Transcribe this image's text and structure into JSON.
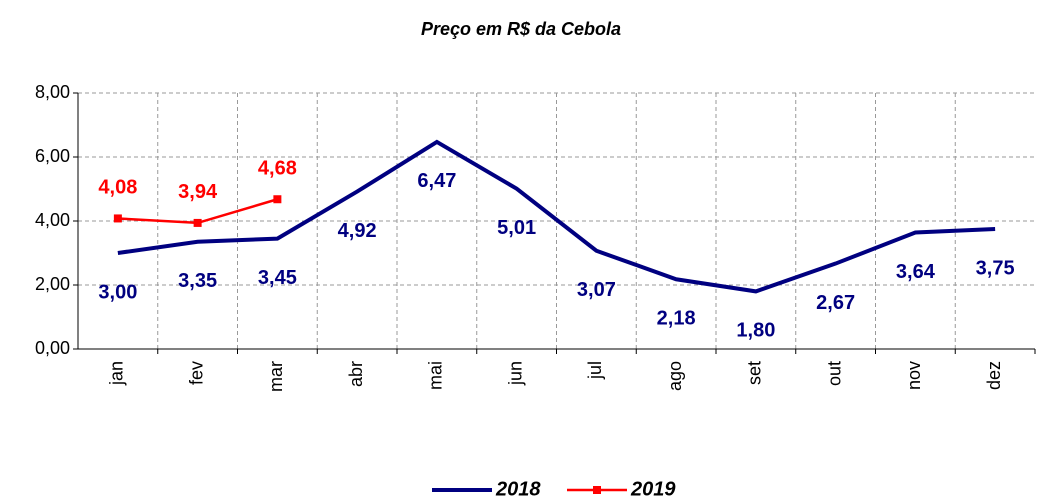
{
  "chart_data": {
    "type": "line",
    "title": "Preço em R$ da Cebola",
    "categories": [
      "jan",
      "fev",
      "mar",
      "abr",
      "mai",
      "jun",
      "jul",
      "ago",
      "set",
      "out",
      "nov",
      "dez"
    ],
    "series": [
      {
        "name": "2018",
        "color": "#000080",
        "values": [
          3.0,
          3.35,
          3.45,
          4.92,
          6.47,
          5.01,
          3.07,
          2.18,
          1.8,
          2.67,
          3.64,
          3.75
        ],
        "value_labels": [
          "3,00",
          "3,35",
          "3,45",
          "4,92",
          "6,47",
          "5,01",
          "3,07",
          "2,18",
          "1,80",
          "2,67",
          "3,64",
          "3,75"
        ]
      },
      {
        "name": "2019",
        "color": "#ff0000",
        "values": [
          4.08,
          3.94,
          4.68,
          null,
          null,
          null,
          null,
          null,
          null,
          null,
          null,
          null
        ],
        "value_labels": [
          "4,08",
          "3,94",
          "4,68",
          null,
          null,
          null,
          null,
          null,
          null,
          null,
          null,
          null
        ]
      }
    ],
    "ylim": [
      0,
      8
    ],
    "yticks": [
      {
        "value": 0,
        "label": "0,00"
      },
      {
        "value": 2,
        "label": "2,00"
      },
      {
        "value": 4,
        "label": "4,00"
      },
      {
        "value": 6,
        "label": "6,00"
      },
      {
        "value": 8,
        "label": "8,00"
      }
    ],
    "grid": true,
    "legend": "bottom"
  }
}
